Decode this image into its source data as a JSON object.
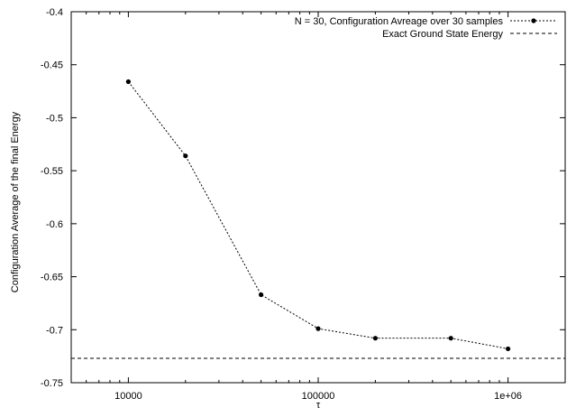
{
  "chart_data": {
    "type": "line",
    "xlabel": "τ",
    "ylabel": "Configuration Average of the final Energy",
    "xscale": "log",
    "xlim": [
      5000,
      2000000
    ],
    "ylim": [
      -0.75,
      -0.4
    ],
    "x_ticks": [
      10000,
      100000,
      1000000
    ],
    "x_tick_labels": [
      "10000",
      "100000",
      "1e+06"
    ],
    "y_ticks": [
      -0.75,
      -0.7,
      -0.65,
      -0.6,
      -0.55,
      -0.5,
      -0.45,
      -0.4
    ],
    "y_tick_labels": [
      "-0.75",
      "-0.7",
      "-0.65",
      "-0.6",
      "-0.55",
      "-0.5",
      "-0.45",
      "-0.4"
    ],
    "grid": false,
    "legend_position": "top-right",
    "series": [
      {
        "name": "N = 30, Configuration Avreage over 30 samples",
        "style": "dotted-line-with-points",
        "color": "#000000",
        "x": [
          10000,
          20000,
          50000,
          100000,
          200000,
          500000,
          1000000
        ],
        "y": [
          -0.466,
          -0.536,
          -0.667,
          -0.699,
          -0.708,
          -0.708,
          -0.718
        ]
      },
      {
        "name": "Exact Ground State Energy",
        "style": "dashed-horizontal",
        "color": "#000000",
        "y": -0.727
      }
    ]
  }
}
